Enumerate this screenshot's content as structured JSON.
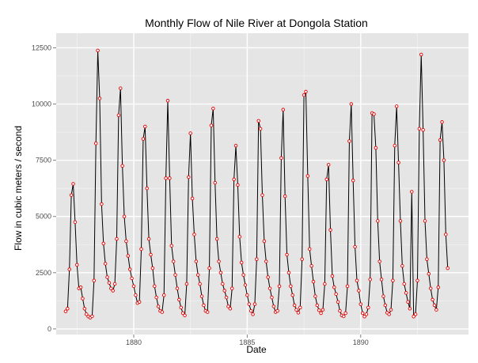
{
  "chart_data": {
    "type": "line",
    "title": "Monthly Flow of Nile River at Dongola Station",
    "xlabel": "Date",
    "ylabel": "Flow in cubic meters / second",
    "x_tick_labels": [
      "1880",
      "1885",
      "1890"
    ],
    "y_tick_labels": [
      "0",
      "2500",
      "5000",
      "7500",
      "10000",
      "12500"
    ],
    "xlim": [
      "1876-08-01",
      "1894-10-01"
    ],
    "ylim": [
      -250,
      13150
    ],
    "grid": true,
    "legend": "none",
    "colors": {
      "panel_background": "#e5e5e5",
      "grid": "#ffffff",
      "line": "#000000",
      "point_outline": "#e00000"
    },
    "series": [
      {
        "start_month": "1877-01",
        "step": "month",
        "values": [
          780,
          900,
          2650,
          5950,
          6450,
          4750,
          2850,
          1800,
          1850,
          1350,
          900,
          650,
          550,
          500,
          560,
          2150,
          8250,
          12380,
          10250,
          5550,
          3800,
          2900,
          2300,
          2050,
          1800,
          1700,
          2000,
          4000,
          9500,
          10700,
          7250,
          5000,
          3900,
          3250,
          2650,
          2250,
          1900,
          1500,
          1150,
          1200,
          3550,
          8450,
          9000,
          6250,
          4000,
          3300,
          2700,
          1900,
          1400,
          1000,
          800,
          750,
          1500,
          6700,
          10150,
          6700,
          3700,
          3000,
          2400,
          1800,
          1300,
          950,
          700,
          600,
          2000,
          6750,
          8700,
          5800,
          4200,
          3000,
          2400,
          2000,
          1450,
          1050,
          800,
          750,
          2700,
          9050,
          9800,
          6500,
          4000,
          3000,
          2500,
          2000,
          1700,
          1400,
          1000,
          900,
          1800,
          6650,
          8150,
          6400,
          4100,
          2950,
          2400,
          1950,
          1500,
          1100,
          800,
          650,
          1100,
          3100,
          9250,
          8900,
          5950,
          3900,
          3000,
          2300,
          1800,
          1400,
          1000,
          750,
          800,
          1900,
          7600,
          9750,
          5900,
          3300,
          2500,
          1900,
          1500,
          1050,
          850,
          720,
          950,
          3100,
          10400,
          10550,
          6800,
          3550,
          2800,
          2100,
          1450,
          1050,
          830,
          700,
          850,
          2000,
          6650,
          7300,
          4400,
          2350,
          1850,
          1550,
          1200,
          800,
          600,
          560,
          700,
          1900,
          8350,
          10000,
          6600,
          3650,
          2150,
          1700,
          1100,
          700,
          550,
          650,
          950,
          2200,
          9600,
          9550,
          8050,
          4800,
          3000,
          2200,
          1450,
          1050,
          720,
          650,
          850,
          2150,
          8150,
          9900,
          7400,
          4800,
          2800,
          2000,
          1600,
          1200,
          900,
          6100,
          550,
          650,
          2150,
          8900,
          12200,
          8850,
          4800,
          3100,
          2450,
          1800,
          1300,
          1050,
          850,
          1850,
          8400,
          9200,
          7500,
          4200,
          2700
        ]
      }
    ]
  }
}
